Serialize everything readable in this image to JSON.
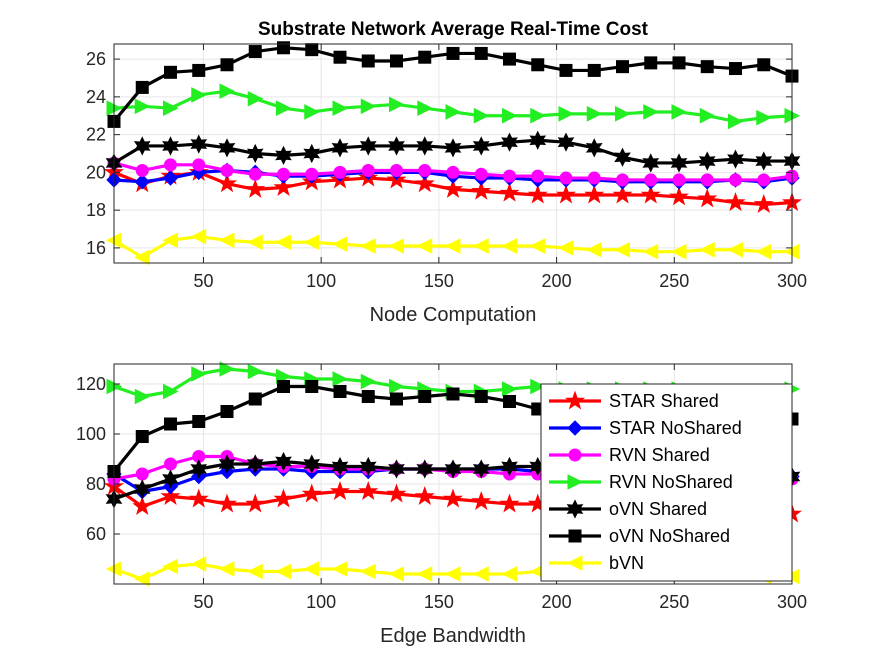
{
  "chart_data": [
    {
      "type": "line",
      "title": "Substrate Network Average Real-Time Cost",
      "xlabel": "Node Computation",
      "ylabel": "",
      "xlim": [
        12,
        300
      ],
      "ylim": [
        15.2,
        26.8
      ],
      "xticks": [
        50,
        100,
        150,
        200,
        250,
        300
      ],
      "yticks": [
        16,
        18,
        20,
        22,
        24,
        26
      ],
      "grid": true,
      "x": [
        12,
        24,
        36,
        48,
        60,
        72,
        84,
        96,
        108,
        120,
        132,
        144,
        156,
        168,
        180,
        192,
        204,
        216,
        228,
        240,
        252,
        264,
        276,
        288,
        300
      ],
      "series": [
        {
          "name": "STAR Shared",
          "color": "#ff0000",
          "marker": "star",
          "values": [
            20.0,
            19.4,
            19.8,
            20.0,
            19.4,
            19.1,
            19.2,
            19.5,
            19.6,
            19.7,
            19.6,
            19.4,
            19.1,
            19.0,
            18.9,
            18.8,
            18.8,
            18.8,
            18.8,
            18.8,
            18.7,
            18.6,
            18.4,
            18.3,
            18.4
          ]
        },
        {
          "name": "STAR NoShared",
          "color": "#0000ff",
          "marker": "diamond",
          "values": [
            19.6,
            19.5,
            19.7,
            20.0,
            20.1,
            20.0,
            19.8,
            19.8,
            19.9,
            20.0,
            20.0,
            20.0,
            19.8,
            19.7,
            19.7,
            19.6,
            19.6,
            19.6,
            19.5,
            19.5,
            19.5,
            19.5,
            19.6,
            19.5,
            19.7
          ]
        },
        {
          "name": "RVN Shared",
          "color": "#ff00ff",
          "marker": "circle",
          "values": [
            20.5,
            20.1,
            20.4,
            20.4,
            20.1,
            19.9,
            19.9,
            19.9,
            20.0,
            20.1,
            20.1,
            20.1,
            20.0,
            19.9,
            19.8,
            19.8,
            19.7,
            19.7,
            19.6,
            19.6,
            19.6,
            19.6,
            19.6,
            19.6,
            19.8
          ]
        },
        {
          "name": "RVN NoShared",
          "color": "#22ee22",
          "marker": "triangle-right",
          "values": [
            23.4,
            23.5,
            23.4,
            24.1,
            24.3,
            23.9,
            23.4,
            23.2,
            23.4,
            23.5,
            23.6,
            23.4,
            23.2,
            23.0,
            23.0,
            23.0,
            23.1,
            23.1,
            23.1,
            23.2,
            23.2,
            23.0,
            22.7,
            22.9,
            23.0
          ]
        },
        {
          "name": "oVN Shared",
          "color": "#000000",
          "marker": "hexagram",
          "values": [
            20.5,
            21.4,
            21.4,
            21.5,
            21.3,
            21.0,
            20.9,
            21.0,
            21.3,
            21.4,
            21.4,
            21.4,
            21.3,
            21.4,
            21.6,
            21.7,
            21.6,
            21.3,
            20.8,
            20.5,
            20.5,
            20.6,
            20.7,
            20.6,
            20.6
          ]
        },
        {
          "name": "oVN NoShared",
          "color": "#000000",
          "marker": "square",
          "values": [
            22.7,
            24.5,
            25.3,
            25.4,
            25.7,
            26.4,
            26.6,
            26.5,
            26.1,
            25.9,
            25.9,
            26.1,
            26.3,
            26.3,
            26.0,
            25.7,
            25.4,
            25.4,
            25.6,
            25.8,
            25.8,
            25.6,
            25.5,
            25.7,
            25.1
          ]
        },
        {
          "name": "bVN",
          "color": "#ffff00",
          "marker": "triangle-left",
          "values": [
            16.4,
            15.5,
            16.4,
            16.6,
            16.4,
            16.3,
            16.3,
            16.3,
            16.2,
            16.1,
            16.1,
            16.1,
            16.1,
            16.1,
            16.1,
            16.1,
            16.0,
            15.9,
            15.9,
            15.8,
            15.8,
            15.9,
            15.9,
            15.8,
            15.8
          ]
        }
      ]
    },
    {
      "type": "line",
      "title": "",
      "xlabel": "Edge Bandwidth",
      "ylabel": "",
      "xlim": [
        12,
        300
      ],
      "ylim": [
        40,
        128
      ],
      "xticks": [
        50,
        100,
        150,
        200,
        250,
        300
      ],
      "yticks": [
        60,
        80,
        100,
        120
      ],
      "grid": true,
      "legend_position": "bottom-right",
      "x": [
        12,
        24,
        36,
        48,
        60,
        72,
        84,
        96,
        108,
        120,
        132,
        144,
        156,
        168,
        180,
        192,
        204,
        216,
        228,
        240,
        252,
        264,
        276,
        288,
        300
      ],
      "series": [
        {
          "name": "STAR Shared",
          "color": "#ff0000",
          "marker": "star",
          "values": [
            79,
            71,
            75,
            74,
            72,
            72,
            74,
            76,
            77,
            77,
            76,
            75,
            74,
            73,
            72,
            72,
            71,
            70,
            70,
            69,
            69,
            68,
            68,
            68,
            68
          ]
        },
        {
          "name": "STAR NoShared",
          "color": "#0000ff",
          "marker": "diamond",
          "values": [
            84,
            77,
            79,
            83,
            85,
            86,
            86,
            85,
            85,
            85,
            86,
            86,
            86,
            86,
            86,
            85,
            85,
            85,
            84,
            84,
            83,
            83,
            82,
            82,
            83
          ]
        },
        {
          "name": "RVN Shared",
          "color": "#ff00ff",
          "marker": "circle",
          "values": [
            82,
            84,
            88,
            91,
            91,
            88,
            87,
            87,
            86,
            86,
            86,
            86,
            85,
            85,
            84,
            84,
            84,
            83,
            83,
            83,
            82,
            82,
            82,
            82,
            82
          ]
        },
        {
          "name": "RVN NoShared",
          "color": "#22ee22",
          "marker": "triangle-right",
          "values": [
            119,
            115,
            117,
            124,
            126,
            125,
            123,
            122,
            122,
            121,
            119,
            118,
            117,
            117,
            118,
            119,
            118,
            118,
            118,
            118,
            118,
            117,
            117,
            117,
            118
          ]
        },
        {
          "name": "oVN Shared",
          "color": "#000000",
          "marker": "hexagram",
          "values": [
            74,
            78,
            82,
            86,
            88,
            88,
            89,
            88,
            87,
            87,
            86,
            86,
            86,
            86,
            87,
            87,
            86,
            85,
            85,
            84,
            84,
            83,
            83,
            83,
            83
          ]
        },
        {
          "name": "oVN NoShared",
          "color": "#000000",
          "marker": "square",
          "values": [
            85,
            99,
            104,
            105,
            109,
            114,
            119,
            119,
            117,
            115,
            114,
            115,
            116,
            115,
            113,
            110,
            110,
            110,
            111,
            112,
            112,
            113,
            113,
            112,
            106
          ]
        },
        {
          "name": "bVN",
          "color": "#ffff00",
          "marker": "triangle-left",
          "values": [
            46,
            42,
            47,
            48,
            46,
            45,
            45,
            46,
            46,
            45,
            44,
            44,
            44,
            44,
            44,
            45,
            45,
            44,
            44,
            44,
            44,
            44,
            44,
            43,
            43
          ]
        }
      ]
    }
  ]
}
